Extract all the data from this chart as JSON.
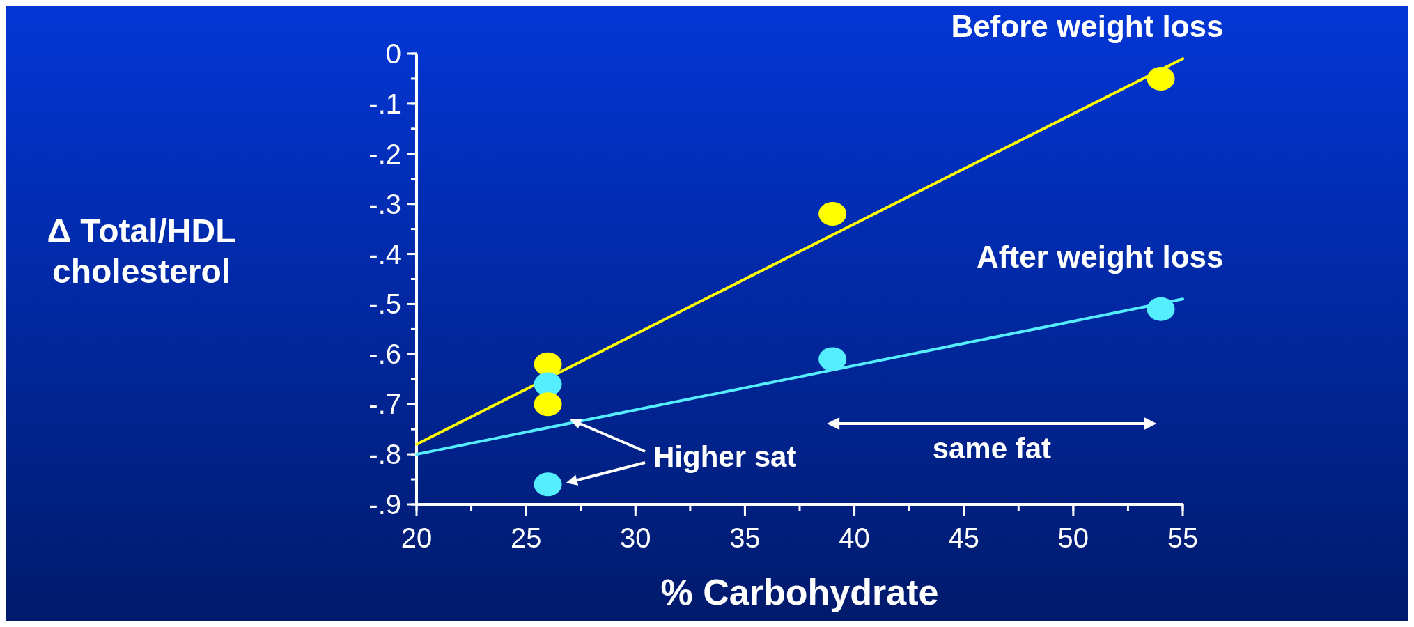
{
  "chart_data": {
    "type": "scatter",
    "xlabel": "% Carbohydrate",
    "ylabel": "Δ Total/HDL cholesterol",
    "xlim": [
      20,
      55
    ],
    "xticks": [
      20,
      25,
      30,
      35,
      40,
      45,
      50,
      55
    ],
    "ylim": [
      -0.9,
      0
    ],
    "yticks": [
      {
        "value": 0,
        "label": "0"
      },
      {
        "value": -0.1,
        "label": "-.1"
      },
      {
        "value": -0.2,
        "label": "-.2"
      },
      {
        "value": -0.3,
        "label": "-.3"
      },
      {
        "value": -0.4,
        "label": "-.4"
      },
      {
        "value": -0.5,
        "label": "-.5"
      },
      {
        "value": -0.6,
        "label": "-.6"
      },
      {
        "value": -0.7,
        "label": "-.7"
      },
      {
        "value": -0.8,
        "label": "-.8"
      },
      {
        "value": -0.9,
        "label": "-.9"
      }
    ],
    "series": [
      {
        "name": "Before weight loss",
        "marker": "circle",
        "color": "#ffff00",
        "x": [
          26,
          39,
          54
        ],
        "values": [
          -0.62,
          -0.32,
          -0.05
        ]
      },
      {
        "name": "After weight loss",
        "marker": "circle",
        "color": "#55eeff",
        "x": [
          26,
          39,
          54
        ],
        "values": [
          -0.66,
          -0.61,
          -0.51
        ]
      },
      {
        "type": "line",
        "color": "#ffff00",
        "x": [
          20,
          55
        ],
        "values": [
          -0.78,
          -0.01
        ]
      },
      {
        "type": "line",
        "color": "#55eeff",
        "x": [
          20,
          55
        ],
        "values": [
          -0.8,
          -0.49
        ]
      },
      {
        "marker": "circle",
        "color": "#ffff00",
        "x": [
          26
        ],
        "values": [
          -0.7
        ]
      },
      {
        "marker": "circle",
        "color": "#55eeff",
        "x": [
          26
        ],
        "values": [
          -0.86
        ]
      }
    ],
    "annotations": [
      {
        "text": "Higher sat",
        "x": 27,
        "y": -0.73
      },
      "same fat"
    ]
  }
}
